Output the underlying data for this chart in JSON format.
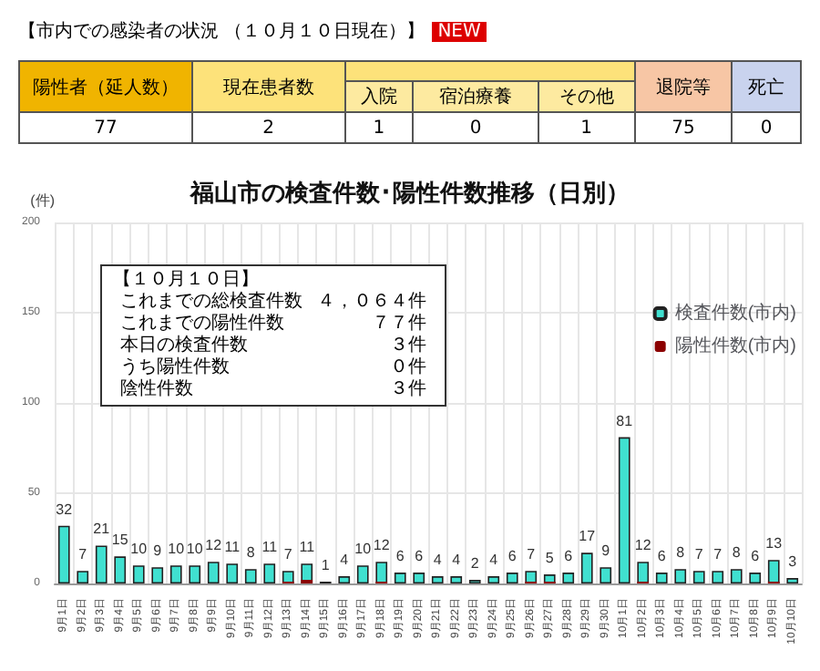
{
  "chart_data": {
    "type": "bar",
    "title": "福山市の検査件数･陽性件数推移（日別）",
    "ylabel": "(件)",
    "annotations": [
      "【市内での感染者の状況 （１０月１０日現在）】",
      "NEW",
      "陽性者（延人数）",
      "現在患者数",
      "入院",
      "宿泊療養",
      "その他",
      "退院等",
      "死亡",
      "77",
      "2",
      "1",
      "0",
      "1",
      "75",
      "0",
      "【１０月１０日】",
      "これまでの総検査件数",
      "４，０６４件",
      "これまでの陽性件数",
      "７７件",
      "本日の検査件数",
      "３件",
      "うち陽性件数",
      "０件",
      "陰性件数",
      "３件"
    ],
    "categories": [
      "9月1日",
      "9月2日",
      "9月3日",
      "9月4日",
      "9月5日",
      "9月6日",
      "9月7日",
      "9月8日",
      "9月9日",
      "9月10日",
      "9月11日",
      "9月12日",
      "9月13日",
      "9月14日",
      "9月15日",
      "9月16日",
      "9月17日",
      "9月18日",
      "9月19日",
      "9月20日",
      "9月21日",
      "9月22日",
      "9月23日",
      "9月24日",
      "9月25日",
      "9月26日",
      "9月27日",
      "9月28日",
      "9月29日",
      "9月30日",
      "10月1日",
      "10月2日",
      "10月3日",
      "10月4日",
      "10月5日",
      "10月6日",
      "10月7日",
      "10月8日",
      "10月9日",
      "10月10日"
    ],
    "series": [
      {
        "name": "検査件数(市内)",
        "color": "#40e0d0",
        "values": [
          32,
          7,
          21,
          15,
          10,
          9,
          10,
          10,
          12,
          11,
          8,
          11,
          7,
          11,
          1,
          4,
          10,
          12,
          6,
          6,
          4,
          4,
          2,
          4,
          6,
          7,
          5,
          6,
          17,
          9,
          81,
          12,
          6,
          8,
          7,
          7,
          8,
          6,
          13,
          3
        ],
        "value_labels": [
          "32",
          "7",
          "21",
          "15",
          "10",
          "9",
          "10",
          "10",
          "12",
          "11",
          "8",
          "11",
          "7",
          "11",
          "1",
          "4",
          "10",
          "12",
          "6",
          "6",
          "4",
          "4",
          "2",
          "4",
          "6",
          "7",
          "5",
          "6",
          "17",
          "9",
          "81",
          "12",
          "6",
          "8",
          "7",
          "7",
          "8",
          "6",
          "13",
          "3"
        ]
      },
      {
        "name": "陽性件数(市内)",
        "color": "#8b0000",
        "values": [
          0,
          0,
          0,
          0,
          0,
          0,
          0,
          0,
          0,
          0,
          0,
          0,
          1,
          2,
          0,
          0,
          0,
          1,
          0,
          0,
          0,
          0,
          0,
          0,
          0,
          1,
          1,
          0,
          0,
          0,
          0,
          1,
          0,
          0,
          0,
          0,
          0,
          0,
          1,
          0
        ]
      }
    ],
    "ylim": [
      0,
      200
    ],
    "yticks": [
      0,
      50,
      100,
      150,
      200
    ],
    "grid": true,
    "legend": "right"
  }
}
